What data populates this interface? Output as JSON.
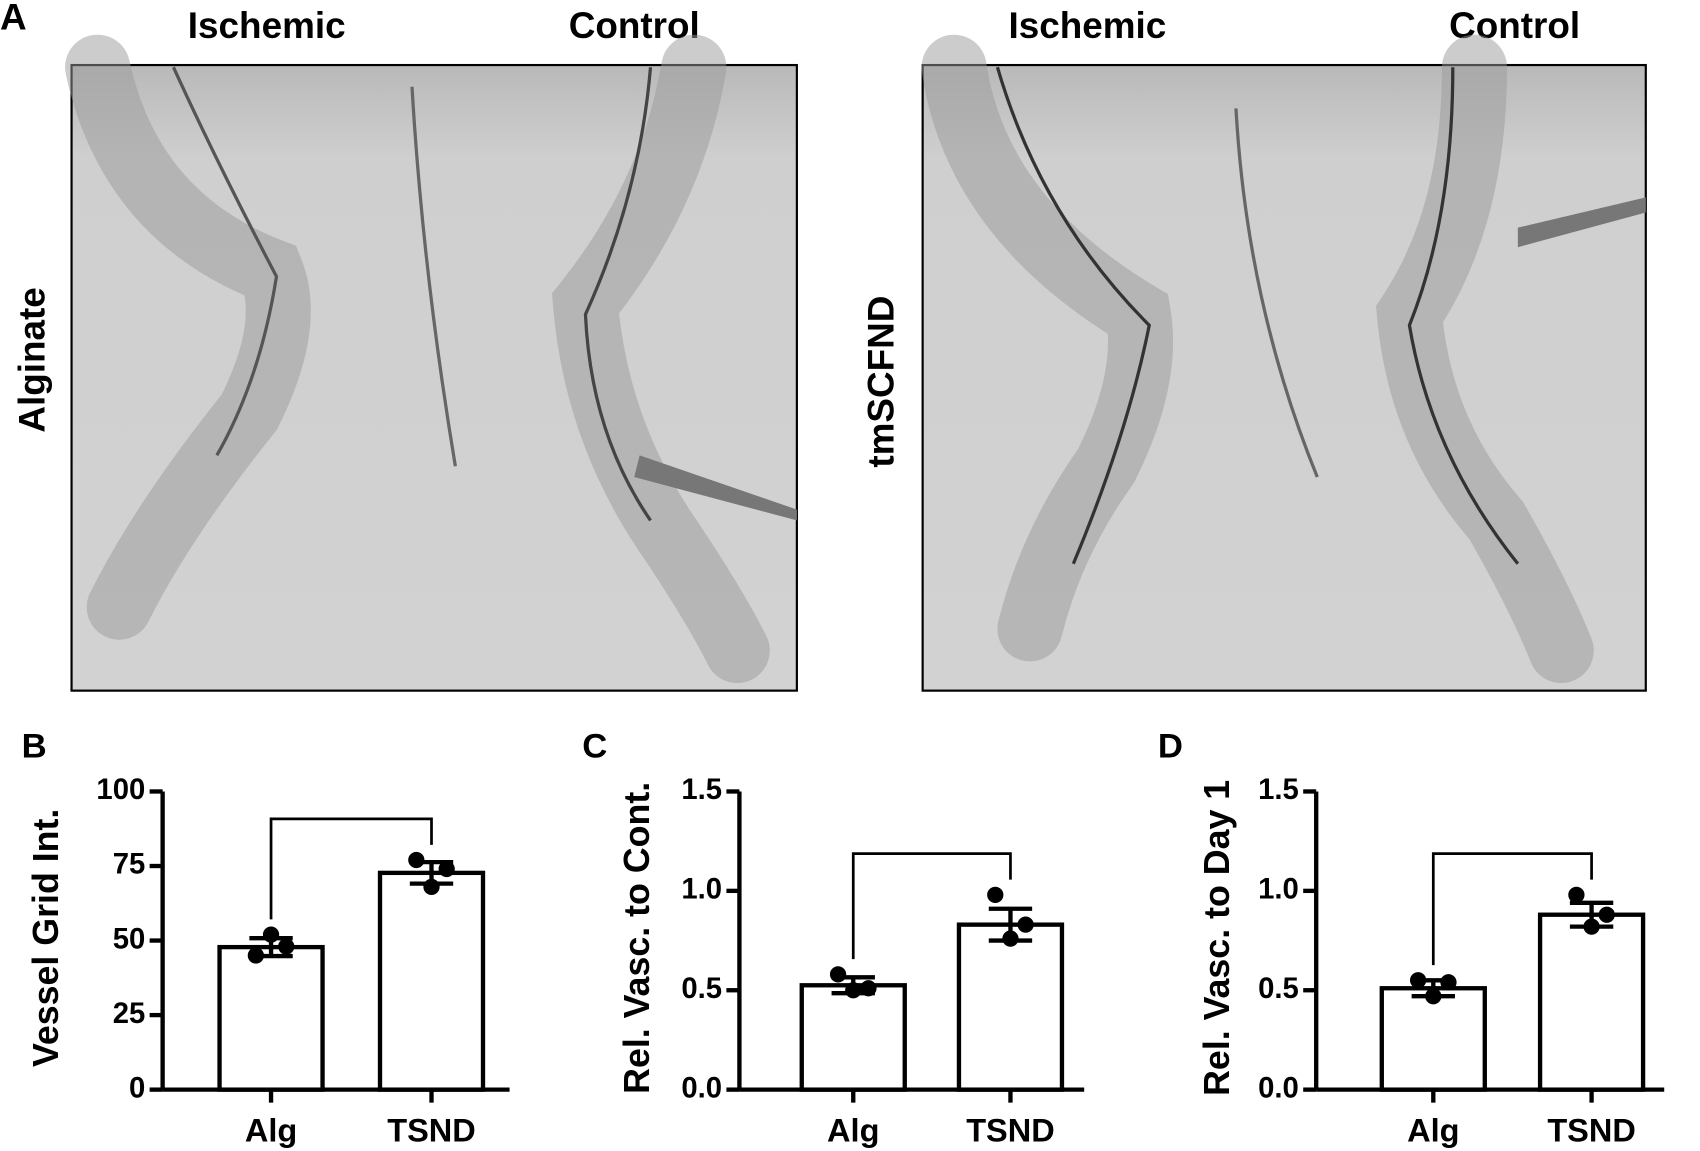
{
  "panel_a": {
    "label": "A",
    "rows": [
      {
        "name": "Alginate",
        "columns": [
          "Ischemic",
          "Control"
        ]
      },
      {
        "name": "tmSCFND",
        "columns": [
          "Ischemic",
          "Control"
        ]
      }
    ]
  },
  "chart_data": [
    {
      "type": "bar",
      "panel": "B",
      "ylabel": "Vessel Grid Int.",
      "categories": [
        "Alg",
        "TSND"
      ],
      "values": [
        47.8,
        72.7
      ],
      "errors": [
        3,
        3.6
      ],
      "points": [
        [
          45,
          52,
          48
        ],
        [
          77,
          68,
          74
        ]
      ],
      "ylim": [
        0,
        100
      ],
      "yticks": [
        0,
        25,
        50,
        75,
        100
      ],
      "color": "#ffffff"
    },
    {
      "type": "bar",
      "panel": "C",
      "ylabel": "Rel. Vasc. to Cont.",
      "categories": [
        "Alg",
        "TSND"
      ],
      "values": [
        0.525,
        0.83
      ],
      "errors": [
        0.04,
        0.08
      ],
      "points": [
        [
          0.58,
          0.5,
          0.51
        ],
        [
          0.98,
          0.76,
          0.83
        ]
      ],
      "ylim": [
        0,
        1.5
      ],
      "yticks": [
        {
          "value": 0,
          "label": "0.0"
        },
        0.5,
        {
          "value": 1,
          "label": "1.0"
        },
        1.5
      ],
      "color": "#ffffff"
    },
    {
      "type": "bar",
      "panel": "D",
      "ylabel": "Rel. Vasc. to Day 1",
      "categories": [
        "Alg",
        "TSND"
      ],
      "values": [
        0.51,
        0.88
      ],
      "errors": [
        0.04,
        0.06
      ],
      "points": [
        [
          0.55,
          0.47,
          0.54
        ],
        [
          0.98,
          0.82,
          0.88
        ]
      ],
      "ylim": [
        0,
        1.5
      ],
      "yticks": [
        {
          "value": 0,
          "label": "0.0"
        },
        0.5,
        {
          "value": 1,
          "label": "1.0"
        },
        1.5
      ],
      "color": "#ffffff"
    }
  ]
}
